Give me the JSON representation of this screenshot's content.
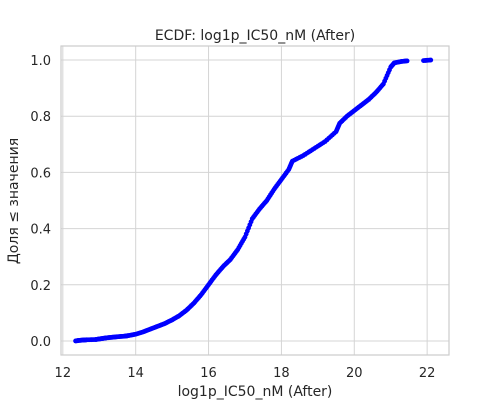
{
  "chart_data": {
    "type": "scatter",
    "title": "ECDF: log1p_IC50_nM (After)",
    "xlabel": "log1p_IC50_nM (After)",
    "ylabel": "Доля ≤ значения",
    "xlim": [
      11.95,
      22.6
    ],
    "ylim": [
      -0.05,
      1.05
    ],
    "xticks": [
      12,
      14,
      16,
      18,
      20,
      22
    ],
    "xtick_labels": [
      "12",
      "14",
      "16",
      "18",
      "20",
      "22"
    ],
    "yticks": [
      0.0,
      0.2,
      0.4,
      0.6,
      0.8,
      1.0
    ],
    "ytick_labels": [
      "0.0",
      "0.2",
      "0.4",
      "0.6",
      "0.8",
      "1.0"
    ],
    "grid": true,
    "marker_color": "#0000ff",
    "series": [
      {
        "x": [
          12.35,
          12.45,
          12.55,
          12.65,
          12.9,
          13.0,
          13.1,
          13.2,
          13.35,
          13.5,
          13.7,
          13.8,
          14.0,
          14.2,
          14.4,
          14.6,
          14.8,
          15.0,
          15.2,
          15.4,
          15.6,
          15.8,
          16.0,
          16.2,
          16.4,
          16.6,
          16.8,
          17.0,
          17.2,
          17.4,
          17.6,
          17.8,
          18.0,
          18.2,
          18.3,
          18.6,
          18.9,
          19.2,
          19.5,
          19.6,
          19.8,
          20.0,
          20.2,
          20.4,
          20.6,
          20.8,
          21.0,
          21.1,
          21.3,
          21.45,
          21.9,
          22.1
        ],
        "y": [
          0.0,
          0.002,
          0.003,
          0.004,
          0.005,
          0.007,
          0.009,
          0.011,
          0.013,
          0.015,
          0.017,
          0.019,
          0.024,
          0.032,
          0.042,
          0.052,
          0.062,
          0.075,
          0.09,
          0.11,
          0.135,
          0.165,
          0.2,
          0.235,
          0.265,
          0.29,
          0.325,
          0.37,
          0.435,
          0.47,
          0.5,
          0.54,
          0.575,
          0.61,
          0.64,
          0.66,
          0.685,
          0.71,
          0.745,
          0.775,
          0.8,
          0.82,
          0.84,
          0.86,
          0.885,
          0.915,
          0.975,
          0.99,
          0.995,
          0.997,
          0.998,
          1.0
        ]
      }
    ]
  }
}
